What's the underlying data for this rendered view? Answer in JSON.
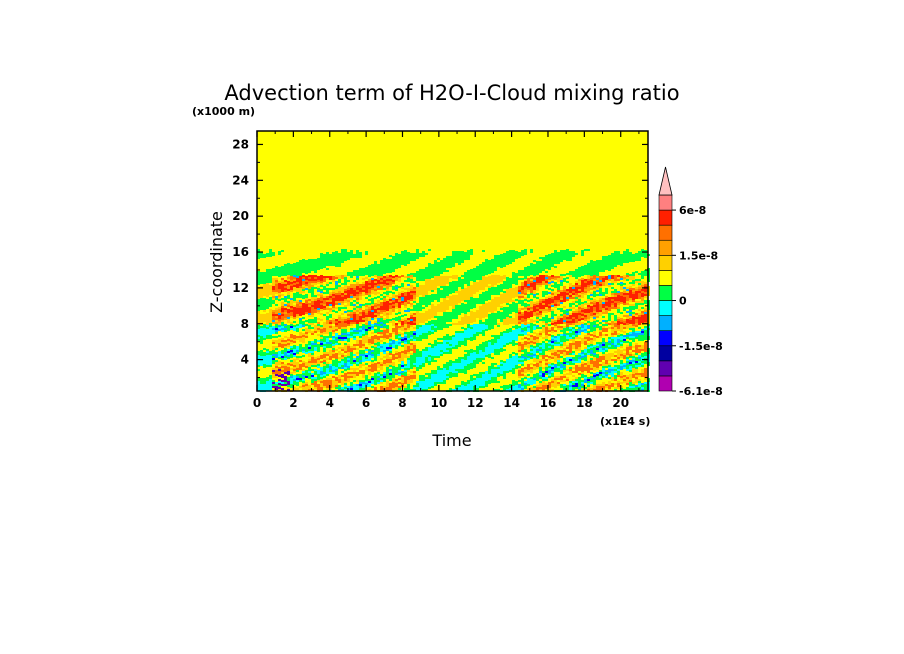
{
  "chart_data": {
    "type": "heatmap",
    "title": "Advection term of H2O-I-Cloud mixing ratio",
    "xlabel": "Time",
    "ylabel": "Z-coordinate",
    "x_unit": "(x1E4 s)",
    "y_unit": "(x1000 m)",
    "xlim": [
      0,
      21.5
    ],
    "ylim": [
      0.5,
      29.5
    ],
    "x_ticks": [
      "0",
      "2",
      "4",
      "6",
      "8",
      "10",
      "12",
      "14",
      "16",
      "18",
      "20"
    ],
    "x_tick_values": [
      0,
      2,
      4,
      6,
      8,
      10,
      12,
      14,
      16,
      18,
      20
    ],
    "y_ticks": [
      "4",
      "8",
      "12",
      "16",
      "20",
      "24",
      "28"
    ],
    "y_tick_values": [
      4,
      8,
      12,
      16,
      20,
      24,
      28
    ],
    "background_color": "#ffff00",
    "active_layer_top": 16,
    "deep_convection_periods": [
      [
        0.8,
        8.6
      ],
      [
        14.2,
        21.3
      ]
    ],
    "colorbar": {
      "colors": [
        "#b000b0",
        "#6000b0",
        "#0000a0",
        "#0000ff",
        "#00b0ff",
        "#00ffff",
        "#00ff44",
        "#ffff00",
        "#ffd000",
        "#ffa000",
        "#ff7000",
        "#ff2000",
        "#ff8080",
        "#ffc0c0"
      ],
      "boundaries": [
        -6.1e-08,
        -4.5e-08,
        -3e-08,
        -1.5e-08,
        -1e-08,
        -5e-09,
        0,
        5e-09,
        1e-08,
        1.5e-08,
        3e-08,
        4.5e-08,
        6e-08
      ],
      "tick_labels": [
        "6e-8",
        "1.5e-8",
        "0",
        "-1.5e-8",
        "-6.1e-8"
      ],
      "extend": "max"
    }
  }
}
